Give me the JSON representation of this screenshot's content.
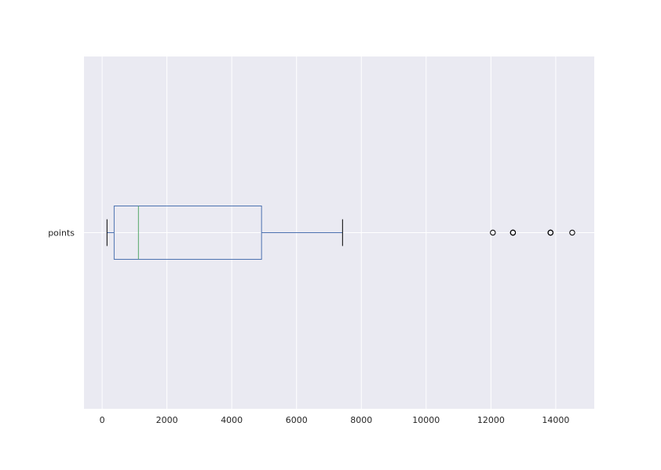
{
  "colors": {
    "background": "#eaeaf2",
    "grid": "#ffffff",
    "box": "#4c72b0",
    "median": "#55a868",
    "whisker": "#000000",
    "outlier": "#000000"
  },
  "chart_data": {
    "type": "boxplot",
    "orientation": "horizontal",
    "title": "",
    "xlabel": "",
    "ylabel": "",
    "xlim": [
      -560,
      15190
    ],
    "xticks": [
      0,
      2000,
      4000,
      6000,
      8000,
      10000,
      12000,
      14000
    ],
    "xtick_labels": [
      "0",
      "2000",
      "4000",
      "6000",
      "8000",
      "10000",
      "12000",
      "14000"
    ],
    "grid": true,
    "categories": [
      "points"
    ],
    "series": [
      {
        "category": "points",
        "whisker_low": 150,
        "q1": 370,
        "median": 1120,
        "q3": 4920,
        "whisker_high": 7420,
        "outliers": [
          12060,
          12680,
          12680,
          12680,
          13840,
          13840,
          13840,
          14510
        ]
      }
    ]
  }
}
